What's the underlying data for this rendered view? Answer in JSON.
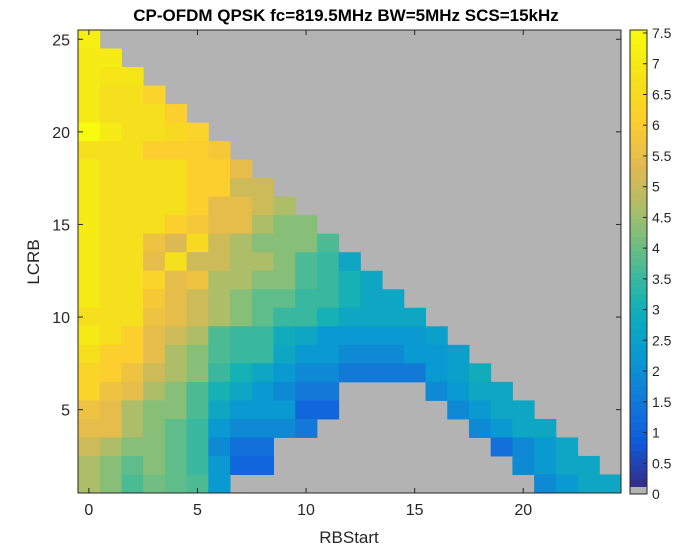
{
  "chart_data": {
    "type": "heatmap",
    "title": "CP-OFDM QPSK fc=819.5MHz BW=5MHz SCS=15kHz",
    "xlabel": "RBStart",
    "ylabel": "LCRB",
    "x_range": [
      0,
      24
    ],
    "y_range": [
      1,
      25
    ],
    "x_ticks": [
      "0",
      "5",
      "10",
      "15",
      "20"
    ],
    "y_ticks": [
      "5",
      "10",
      "15",
      "20",
      "25"
    ],
    "colorbar": {
      "ticks": [
        "0",
        "0.5",
        "1",
        "1.5",
        "2",
        "2.5",
        "3",
        "3.5",
        "4",
        "4.5",
        "5",
        "5.5",
        "6",
        "6.5",
        "7",
        "7.5"
      ],
      "range": [
        0,
        7.5
      ],
      "colormap": "parula",
      "invalid_color": "#b3b3b3"
    },
    "invalid_color": "#b3b3b3",
    "note_grid": "rows indexed by LCRB from 25 down to 1; columns by RBStart 0..24; null = invalid (gray)",
    "values": [
      [
        7.1,
        null,
        null,
        null,
        null,
        null,
        null,
        null,
        null,
        null,
        null,
        null,
        null,
        null,
        null,
        null,
        null,
        null,
        null,
        null,
        null,
        null,
        null,
        null,
        null
      ],
      [
        7.0,
        7.0,
        null,
        null,
        null,
        null,
        null,
        null,
        null,
        null,
        null,
        null,
        null,
        null,
        null,
        null,
        null,
        null,
        null,
        null,
        null,
        null,
        null,
        null,
        null
      ],
      [
        7.0,
        6.8,
        6.8,
        null,
        null,
        null,
        null,
        null,
        null,
        null,
        null,
        null,
        null,
        null,
        null,
        null,
        null,
        null,
        null,
        null,
        null,
        null,
        null,
        null,
        null
      ],
      [
        7.0,
        6.6,
        6.6,
        6.2,
        null,
        null,
        null,
        null,
        null,
        null,
        null,
        null,
        null,
        null,
        null,
        null,
        null,
        null,
        null,
        null,
        null,
        null,
        null,
        null,
        null
      ],
      [
        7.0,
        6.6,
        6.6,
        6.6,
        6.0,
        null,
        null,
        null,
        null,
        null,
        null,
        null,
        null,
        null,
        null,
        null,
        null,
        null,
        null,
        null,
        null,
        null,
        null,
        null,
        null
      ],
      [
        7.5,
        7.0,
        6.6,
        6.6,
        6.4,
        6.2,
        null,
        null,
        null,
        null,
        null,
        null,
        null,
        null,
        null,
        null,
        null,
        null,
        null,
        null,
        null,
        null,
        null,
        null,
        null
      ],
      [
        6.6,
        6.6,
        6.6,
        6.0,
        6.0,
        6.0,
        5.8,
        null,
        null,
        null,
        null,
        null,
        null,
        null,
        null,
        null,
        null,
        null,
        null,
        null,
        null,
        null,
        null,
        null,
        null
      ],
      [
        7.0,
        6.6,
        6.6,
        6.6,
        6.6,
        6.0,
        6.0,
        5.4,
        null,
        null,
        null,
        null,
        null,
        null,
        null,
        null,
        null,
        null,
        null,
        null,
        null,
        null,
        null,
        null,
        null
      ],
      [
        7.0,
        6.6,
        6.6,
        6.6,
        6.6,
        6.0,
        6.0,
        5.0,
        5.0,
        null,
        null,
        null,
        null,
        null,
        null,
        null,
        null,
        null,
        null,
        null,
        null,
        null,
        null,
        null,
        null
      ],
      [
        7.0,
        6.6,
        6.6,
        6.6,
        6.6,
        6.0,
        5.4,
        5.4,
        5.0,
        4.6,
        null,
        null,
        null,
        null,
        null,
        null,
        null,
        null,
        null,
        null,
        null,
        null,
        null,
        null,
        null
      ],
      [
        7.0,
        6.6,
        6.6,
        6.6,
        6.0,
        5.8,
        5.4,
        5.4,
        4.6,
        4.2,
        4.2,
        null,
        null,
        null,
        null,
        null,
        null,
        null,
        null,
        null,
        null,
        null,
        null,
        null,
        null
      ],
      [
        7.0,
        6.6,
        6.6,
        5.6,
        5.2,
        6.4,
        5.0,
        4.6,
        4.2,
        4.2,
        4.2,
        3.6,
        null,
        null,
        null,
        null,
        null,
        null,
        null,
        null,
        null,
        null,
        null,
        null,
        null
      ],
      [
        7.0,
        6.6,
        6.6,
        5.4,
        6.6,
        5.0,
        5.0,
        4.6,
        4.6,
        4.2,
        3.6,
        3.4,
        2.6,
        null,
        null,
        null,
        null,
        null,
        null,
        null,
        null,
        null,
        null,
        null,
        null
      ],
      [
        7.0,
        6.6,
        6.6,
        6.2,
        5.4,
        5.6,
        4.6,
        4.6,
        4.2,
        4.2,
        3.6,
        3.4,
        3.0,
        2.6,
        null,
        null,
        null,
        null,
        null,
        null,
        null,
        null,
        null,
        null,
        null
      ],
      [
        7.0,
        6.6,
        6.6,
        5.8,
        5.4,
        5.0,
        4.6,
        4.2,
        3.8,
        3.8,
        3.4,
        3.4,
        3.0,
        2.6,
        2.6,
        null,
        null,
        null,
        null,
        null,
        null,
        null,
        null,
        null,
        null
      ],
      [
        6.6,
        6.6,
        6.6,
        5.6,
        5.4,
        5.0,
        4.6,
        4.2,
        3.8,
        3.4,
        3.4,
        3.0,
        2.6,
        2.6,
        2.6,
        2.6,
        null,
        null,
        null,
        null,
        null,
        null,
        null,
        null,
        null
      ],
      [
        7.0,
        6.6,
        6.0,
        5.4,
        5.0,
        4.6,
        3.6,
        3.4,
        3.4,
        2.8,
        2.6,
        2.2,
        2.2,
        2.2,
        2.2,
        2.2,
        2.4,
        null,
        null,
        null,
        null,
        null,
        null,
        null,
        null
      ],
      [
        6.6,
        6.0,
        6.0,
        5.4,
        4.6,
        4.2,
        3.6,
        3.4,
        3.4,
        2.6,
        2.2,
        2.2,
        1.8,
        1.8,
        1.8,
        2.2,
        2.2,
        2.4,
        null,
        null,
        null,
        null,
        null,
        null,
        null
      ],
      [
        6.2,
        6.0,
        5.6,
        5.0,
        4.6,
        4.2,
        3.4,
        3.0,
        2.6,
        2.2,
        1.8,
        1.8,
        1.4,
        1.4,
        1.4,
        1.4,
        2.2,
        2.4,
        2.8,
        null,
        null,
        null,
        null,
        null,
        null
      ],
      [
        6.2,
        5.6,
        5.4,
        4.6,
        4.2,
        3.6,
        3.0,
        2.6,
        2.2,
        1.8,
        1.4,
        1.4,
        null,
        null,
        null,
        null,
        1.8,
        2.2,
        2.6,
        2.6,
        null,
        null,
        null,
        null,
        null
      ],
      [
        5.6,
        5.4,
        4.6,
        4.2,
        4.2,
        3.6,
        2.6,
        2.2,
        2.2,
        2.2,
        1.0,
        1.0,
        null,
        null,
        null,
        null,
        null,
        1.8,
        2.2,
        2.6,
        2.6,
        null,
        null,
        null,
        null
      ],
      [
        5.4,
        5.4,
        4.6,
        4.2,
        3.8,
        3.4,
        2.2,
        1.8,
        1.8,
        1.8,
        1.4,
        null,
        null,
        null,
        null,
        null,
        null,
        null,
        1.8,
        2.2,
        2.6,
        2.6,
        null,
        null,
        null
      ],
      [
        5.0,
        4.6,
        4.2,
        4.2,
        3.8,
        3.4,
        1.8,
        1.2,
        1.2,
        null,
        null,
        null,
        null,
        null,
        null,
        null,
        null,
        null,
        null,
        1.2,
        1.8,
        2.2,
        2.6,
        null,
        null
      ],
      [
        4.6,
        4.2,
        3.8,
        4.2,
        3.8,
        3.4,
        2.2,
        1.0,
        1.0,
        null,
        null,
        null,
        null,
        null,
        null,
        null,
        null,
        null,
        null,
        null,
        1.8,
        2.2,
        2.6,
        2.6,
        null
      ],
      [
        4.6,
        4.2,
        3.6,
        4.0,
        3.8,
        3.6,
        2.2,
        null,
        null,
        null,
        null,
        null,
        null,
        null,
        null,
        null,
        null,
        null,
        null,
        null,
        null,
        1.8,
        2.2,
        2.6,
        2.6
      ]
    ]
  }
}
